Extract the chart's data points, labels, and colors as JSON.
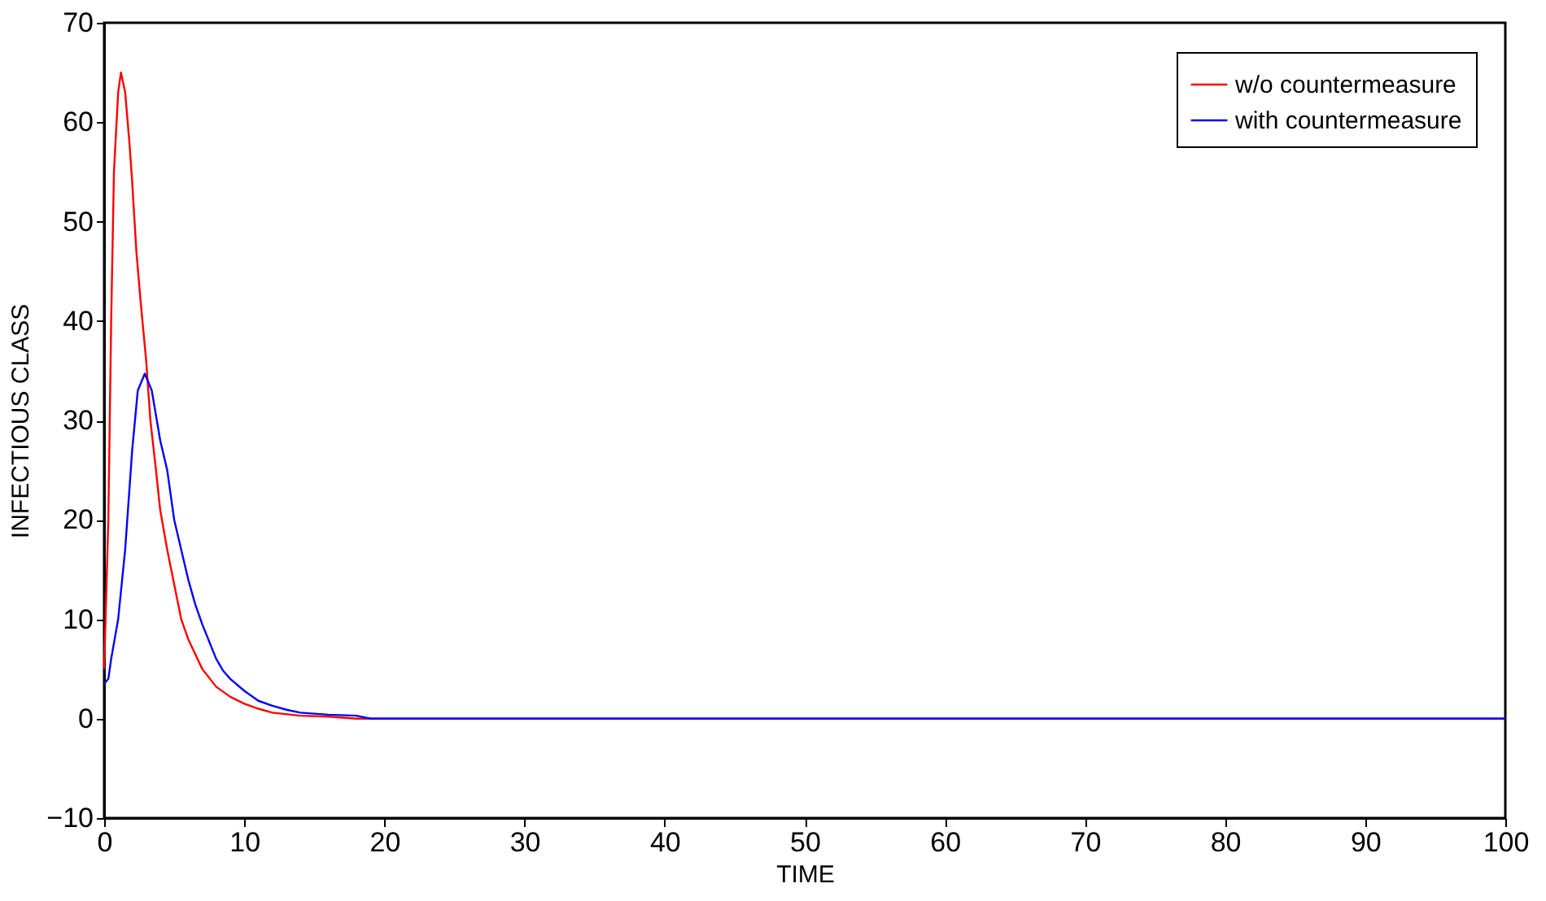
{
  "chart_data": {
    "type": "line",
    "xlabel": "TIME",
    "ylabel": "INFECTIOUS CLASS",
    "xlim": [
      0,
      100
    ],
    "xticks": [
      0,
      10,
      20,
      30,
      40,
      50,
      60,
      70,
      80,
      90,
      100
    ],
    "ylim": [
      -10,
      70
    ],
    "yticks": [
      -10,
      0,
      10,
      20,
      30,
      40,
      50,
      60,
      70
    ],
    "grid": false,
    "legend": "top right",
    "marker": "none",
    "line_style": "solid",
    "series": [
      {
        "name": "w/o countermeasure",
        "color": "#ff0000",
        "x": [
          0,
          0.3,
          0.5,
          0.7,
          1.0,
          1.2,
          1.5,
          1.8,
          2.0,
          2.3,
          2.6,
          3.0,
          3.3,
          3.7,
          4.0,
          4.5,
          5.0,
          5.5,
          6.0,
          7.0,
          8.0,
          9.0,
          10,
          11,
          12,
          14,
          16,
          18,
          100
        ],
        "values": [
          5,
          20,
          40,
          55,
          63,
          65,
          63,
          58,
          54,
          47,
          42,
          36,
          30,
          25,
          21,
          17,
          13.5,
          10,
          8,
          5,
          3.2,
          2.2,
          1.5,
          1.0,
          0.6,
          0.3,
          0.2,
          0,
          0
        ]
      },
      {
        "name": "with countermeasure",
        "color": "#0000ff",
        "x": [
          0,
          0.3,
          0.5,
          1.0,
          1.5,
          2.0,
          2.4,
          2.9,
          3.4,
          4.0,
          4.5,
          5.0,
          5.5,
          6.0,
          6.5,
          7.0,
          8.0,
          8.5,
          9.0,
          10,
          11,
          12,
          13,
          14,
          16,
          18,
          19,
          100
        ],
        "values": [
          3.5,
          4,
          6,
          10,
          17,
          27,
          33,
          34.7,
          33,
          28,
          25,
          20,
          17,
          14,
          11.5,
          9.5,
          6,
          4.8,
          4,
          2.8,
          1.8,
          1.3,
          0.9,
          0.6,
          0.4,
          0.3,
          0,
          0
        ]
      }
    ]
  }
}
